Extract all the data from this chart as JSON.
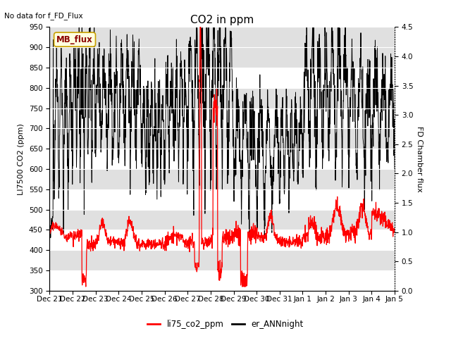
{
  "title": "CO2 in ppm",
  "no_data_text": "No data for f_FD_Flux",
  "mb_flux_label": "MB_flux",
  "ylabel_left": "LI7500 CO2 (ppm)",
  "ylabel_right": "FD Chamber flux",
  "ylim_left": [
    300,
    950
  ],
  "ylim_right": [
    0.0,
    4.5
  ],
  "yticks_left": [
    300,
    350,
    400,
    450,
    500,
    550,
    600,
    650,
    700,
    750,
    800,
    850,
    900,
    950
  ],
  "yticks_right": [
    0.0,
    0.5,
    1.0,
    1.5,
    2.0,
    2.5,
    3.0,
    3.5,
    4.0,
    4.5
  ],
  "xtick_labels": [
    "Dec 21",
    "Dec 22",
    "Dec 23",
    "Dec 24",
    "Dec 25",
    "Dec 26",
    "Dec 27",
    "Dec 28",
    "Dec 29",
    "Dec 30",
    "Dec 31",
    "Jan 1",
    "Jan 2",
    "Jan 3",
    "Jan 4",
    "Jan 5"
  ],
  "legend_labels": [
    "li75_co2_ppm",
    "er_ANNnight"
  ],
  "legend_colors": [
    "#ff0000",
    "#000000"
  ],
  "line_red_color": "#ff0000",
  "line_black_color": "#000000",
  "bg_band_color": "#e0e0e0",
  "title_fontsize": 11,
  "label_fontsize": 8,
  "tick_fontsize": 7.5,
  "seed": 42
}
